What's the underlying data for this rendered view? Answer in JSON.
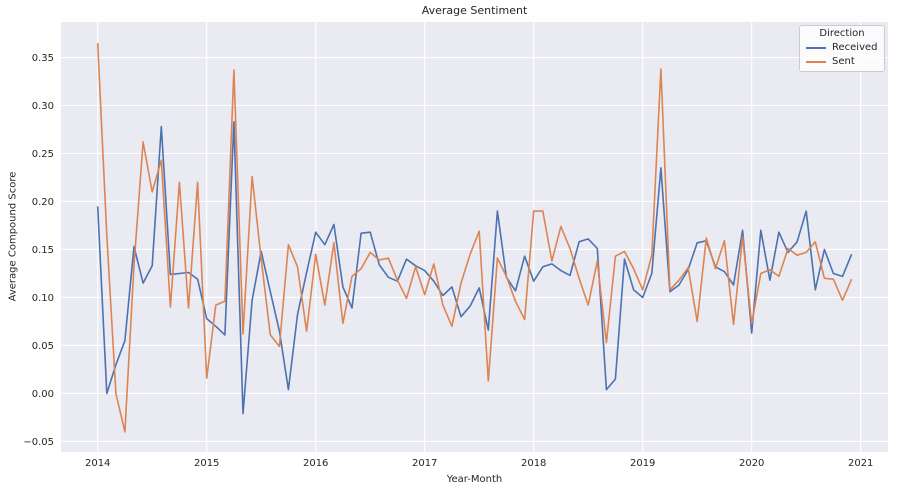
{
  "chart_data": {
    "type": "line",
    "title": "Average Sentiment",
    "xlabel": "Year-Month",
    "ylabel": "Average Compound Score",
    "legend": {
      "title": "Direction",
      "position": "upper right"
    },
    "colors": {
      "axes_background": "#eaeaf2",
      "grid": "#ffffff",
      "text": "#262626",
      "received": "#4c72b0",
      "sent": "#dd8452"
    },
    "x_start": "2014-01",
    "x_end": "2020-12",
    "x_ticks": [
      {
        "label": "2014",
        "month_index": 0
      },
      {
        "label": "2015",
        "month_index": 12
      },
      {
        "label": "2016",
        "month_index": 24
      },
      {
        "label": "2017",
        "month_index": 36
      },
      {
        "label": "2018",
        "month_index": 48
      },
      {
        "label": "2019",
        "month_index": 60
      },
      {
        "label": "2020",
        "month_index": 72
      },
      {
        "label": "2021",
        "month_index": 84
      }
    ],
    "y_ticks": [
      {
        "label": "−0.05",
        "value": -0.05
      },
      {
        "label": "0.00",
        "value": 0.0
      },
      {
        "label": "0.05",
        "value": 0.05
      },
      {
        "label": "0.10",
        "value": 0.1
      },
      {
        "label": "0.15",
        "value": 0.15
      },
      {
        "label": "0.20",
        "value": 0.2
      },
      {
        "label": "0.25",
        "value": 0.25
      },
      {
        "label": "0.30",
        "value": 0.3
      },
      {
        "label": "0.35",
        "value": 0.35
      }
    ],
    "ylim": [
      -0.061,
      0.387
    ],
    "grid": true,
    "series": [
      {
        "name": "Received",
        "color": "#4c72b0",
        "values": [
          0.195,
          0.0,
          0.03,
          0.055,
          0.153,
          0.115,
          0.133,
          0.278,
          0.124,
          0.125,
          0.126,
          0.119,
          0.078,
          0.07,
          0.061,
          0.283,
          -0.021,
          0.097,
          0.148,
          0.106,
          0.065,
          0.004,
          0.082,
          0.126,
          0.168,
          0.155,
          0.176,
          0.111,
          0.089,
          0.167,
          0.168,
          0.134,
          0.121,
          0.117,
          0.14,
          0.133,
          0.128,
          0.117,
          0.102,
          0.111,
          0.08,
          0.091,
          0.11,
          0.066,
          0.19,
          0.121,
          0.107,
          0.143,
          0.117,
          0.132,
          0.135,
          0.128,
          0.123,
          0.158,
          0.161,
          0.151,
          0.004,
          0.015,
          0.14,
          0.108,
          0.1,
          0.125,
          0.235,
          0.106,
          0.113,
          0.129,
          0.157,
          0.159,
          0.132,
          0.127,
          0.113,
          0.17,
          0.063,
          0.17,
          0.118,
          0.168,
          0.147,
          0.158,
          0.19,
          0.108,
          0.15,
          0.125,
          0.122,
          0.145
        ]
      },
      {
        "name": "Sent",
        "color": "#dd8452",
        "values": [
          0.365,
          0.165,
          0.0,
          -0.04,
          0.134,
          0.262,
          0.21,
          0.243,
          0.09,
          0.22,
          0.089,
          0.22,
          0.016,
          0.092,
          0.096,
          0.337,
          0.062,
          0.226,
          0.14,
          0.061,
          0.049,
          0.155,
          0.132,
          0.065,
          0.145,
          0.092,
          0.157,
          0.073,
          0.122,
          0.13,
          0.147,
          0.139,
          0.141,
          0.118,
          0.099,
          0.132,
          0.103,
          0.135,
          0.092,
          0.07,
          0.115,
          0.145,
          0.169,
          0.013,
          0.141,
          0.122,
          0.096,
          0.077,
          0.19,
          0.19,
          0.138,
          0.174,
          0.151,
          0.12,
          0.092,
          0.138,
          0.053,
          0.143,
          0.148,
          0.13,
          0.108,
          0.144,
          0.338,
          0.108,
          0.118,
          0.131,
          0.075,
          0.162,
          0.13,
          0.159,
          0.072,
          0.163,
          0.073,
          0.125,
          0.129,
          0.122,
          0.151,
          0.144,
          0.147,
          0.158,
          0.12,
          0.119,
          0.097,
          0.119
        ]
      }
    ]
  }
}
